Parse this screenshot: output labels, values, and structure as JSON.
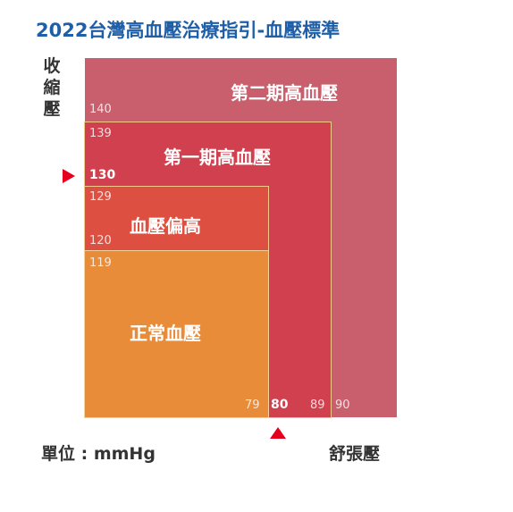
{
  "title": "2022台灣高血壓治療指引-血壓標準",
  "y_axis_label": [
    "收",
    "縮",
    "壓"
  ],
  "x_axis_label": "舒張壓",
  "unit_label": "單位 : mmHg",
  "zones": {
    "stage2": "第二期高血壓",
    "stage1": "第一期高血壓",
    "elevated": "血壓偏高",
    "normal": "正常血壓"
  },
  "systolic_ticks": {
    "t140": "140",
    "t139": "139",
    "t130": "130",
    "t129": "129",
    "t120": "120",
    "t119": "119"
  },
  "diastolic_ticks": {
    "t79": "79",
    "t80": "80",
    "t89": "89",
    "t90": "90"
  },
  "thresholds": {
    "systolic": 130,
    "diastolic": 80
  },
  "colors": {
    "stage2": "#c95f6c",
    "stage1": "#d1404e",
    "elevated": "#dc4f41",
    "normal": "#e88c3a",
    "marker": "#e4001e",
    "title": "#1f5fa8"
  }
}
